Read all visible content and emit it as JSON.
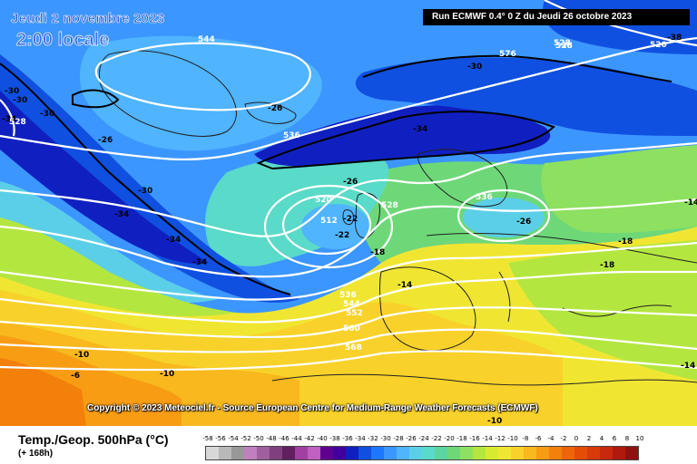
{
  "header": {
    "date_line": "Jeudi 2 novembre 2023",
    "time_line": "2:00 locale",
    "run_info": "Run ECMWF 0.4° 0 Z du Jeudi 26 octobre 2023"
  },
  "copyright": "Copyright © 2023 Meteociel.fr - Source European Centre for Medium-Range Weather Forecasts (ECMWF)",
  "footer": {
    "parameter": "Temp./Geop. 500hPa (°C)",
    "lead_time": "(+ 168h)"
  },
  "legend": {
    "ticks": [
      "-58",
      "-56",
      "-54",
      "-52",
      "-50",
      "-48",
      "-46",
      "-44",
      "-42",
      "-40",
      "-38",
      "-36",
      "-34",
      "-32",
      "-30",
      "-28",
      "-26",
      "-24",
      "-22",
      "-20",
      "-18",
      "-16",
      "-14",
      "-12",
      "-10",
      "-8",
      "-6",
      "-4",
      "-2",
      "0",
      "2",
      "4",
      "6",
      "8",
      "10"
    ],
    "colors": [
      "#d8d8d8",
      "#b8b8b8",
      "#989898",
      "#c080c0",
      "#a060a0",
      "#804080",
      "#602060",
      "#a040a0",
      "#c060c0",
      "#600090",
      "#4000a0",
      "#1020c0",
      "#1050e0",
      "#1e78ff",
      "#3c96ff",
      "#50b4ff",
      "#5ccfe8",
      "#5adac8",
      "#5cd6a0",
      "#6ed878",
      "#8ee060",
      "#b4e640",
      "#d8ea30",
      "#f0e632",
      "#f8d22a",
      "#f8b81e",
      "#f89c14",
      "#f4800c",
      "#ee6408",
      "#e44c08",
      "#d83a0a",
      "#c8280c",
      "#b01a0e",
      "#901010"
    ]
  },
  "map_labels": {
    "temperature": [
      "-30",
      "-30",
      "-34",
      "-30",
      "-26",
      "-30",
      "-34",
      "-34",
      "-34",
      "-26",
      "-30",
      "-34",
      "-26",
      "-22",
      "-22",
      "-18",
      "-14",
      "-26",
      "-18",
      "-18",
      "-14",
      "-10",
      "-10",
      "-6",
      "-10",
      "-14",
      "-38"
    ],
    "geopotential": [
      "544",
      "528",
      "536",
      "520",
      "528",
      "512",
      "528",
      "536",
      "544",
      "552",
      "560",
      "568",
      "576",
      "536",
      "528",
      "520",
      "536"
    ]
  }
}
